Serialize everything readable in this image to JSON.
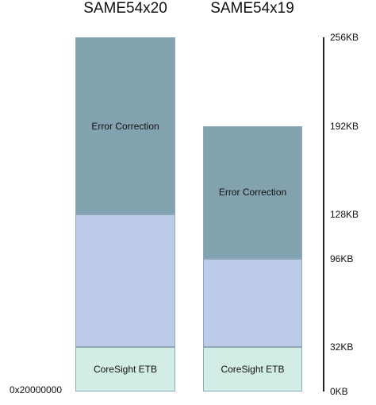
{
  "columns": [
    {
      "title": "SAME54x20",
      "segments": [
        {
          "label": "CoreSight ETB",
          "start_kb": 0,
          "end_kb": 32,
          "color": "#d2ece6"
        },
        {
          "label": "",
          "start_kb": 32,
          "end_kb": 128,
          "color": "#bccbea"
        },
        {
          "label": "Error Correction",
          "start_kb": 128,
          "end_kb": 256,
          "color": "#83a2b0"
        }
      ]
    },
    {
      "title": "SAME54x19",
      "segments": [
        {
          "label": "CoreSight ETB",
          "start_kb": 0,
          "end_kb": 32,
          "color": "#d2ece6"
        },
        {
          "label": "",
          "start_kb": 32,
          "end_kb": 96,
          "color": "#bccbea"
        },
        {
          "label": "Error Correction",
          "start_kb": 96,
          "end_kb": 192,
          "color": "#83a2b0"
        }
      ]
    }
  ],
  "axis": {
    "ticks": [
      {
        "label": "256KB",
        "value_kb": 256
      },
      {
        "label": "192KB",
        "value_kb": 192
      },
      {
        "label": "128KB",
        "value_kb": 128
      },
      {
        "label": "96KB",
        "value_kb": 96
      },
      {
        "label": "32KB",
        "value_kb": 32
      },
      {
        "label": "0KB",
        "value_kb": 0
      }
    ]
  },
  "base_address": "0x20000000"
}
